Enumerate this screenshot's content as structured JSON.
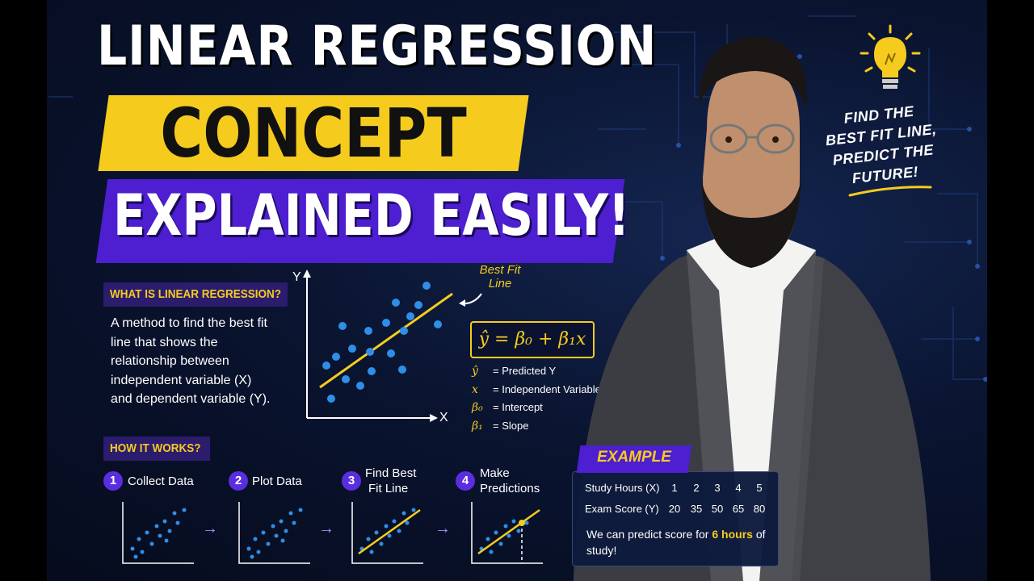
{
  "title": {
    "line1": "LINEAR REGRESSION",
    "line2": "CONCEPT",
    "line3": "EXPLAINED EASILY!"
  },
  "what": {
    "heading": "WHAT IS LINEAR REGRESSION?",
    "body": "A method to find the best fit line that shows the relationship between independent variable (X) and dependent variable (Y)."
  },
  "chart": {
    "y_label": "Y",
    "x_label": "X",
    "best_fit_label": "Best Fit Line"
  },
  "formula": "ŷ = β₀ + β₁x",
  "legend": [
    {
      "symbol": "ŷ",
      "text": "= Predicted Y"
    },
    {
      "symbol": "x",
      "text": "= Independent Variable"
    },
    {
      "symbol": "β₀",
      "text": "= Intercept"
    },
    {
      "symbol": "β₁",
      "text": "= Slope"
    }
  ],
  "how": {
    "heading": "HOW IT WORKS?",
    "steps": [
      {
        "num": "1",
        "line1": "Collect Data",
        "line2": ""
      },
      {
        "num": "2",
        "line1": "Plot Data",
        "line2": ""
      },
      {
        "num": "3",
        "line1": "Find Best",
        "line2": "Fit Line"
      },
      {
        "num": "4",
        "line1": "Make",
        "line2": "Predictions"
      }
    ],
    "arrow": "→"
  },
  "example": {
    "tag": "EXAMPLE",
    "row1_label": "Study Hours (X)",
    "row1_values": [
      "1",
      "2",
      "3",
      "4",
      "5"
    ],
    "row2_label": "Exam Score (Y)",
    "row2_values": [
      "20",
      "35",
      "50",
      "65",
      "80"
    ],
    "note_pre": "We can predict score for",
    "note_highlight": "6 hours",
    "note_post": "of study!"
  },
  "tagline": "FIND THE BEST FIT LINE, PREDICT THE FUTURE!",
  "colors": {
    "accent_yellow": "#f5cc1e",
    "accent_purple": "#4d1fd0",
    "point_blue": "#2f8fe8",
    "background": "#0a1430"
  }
}
